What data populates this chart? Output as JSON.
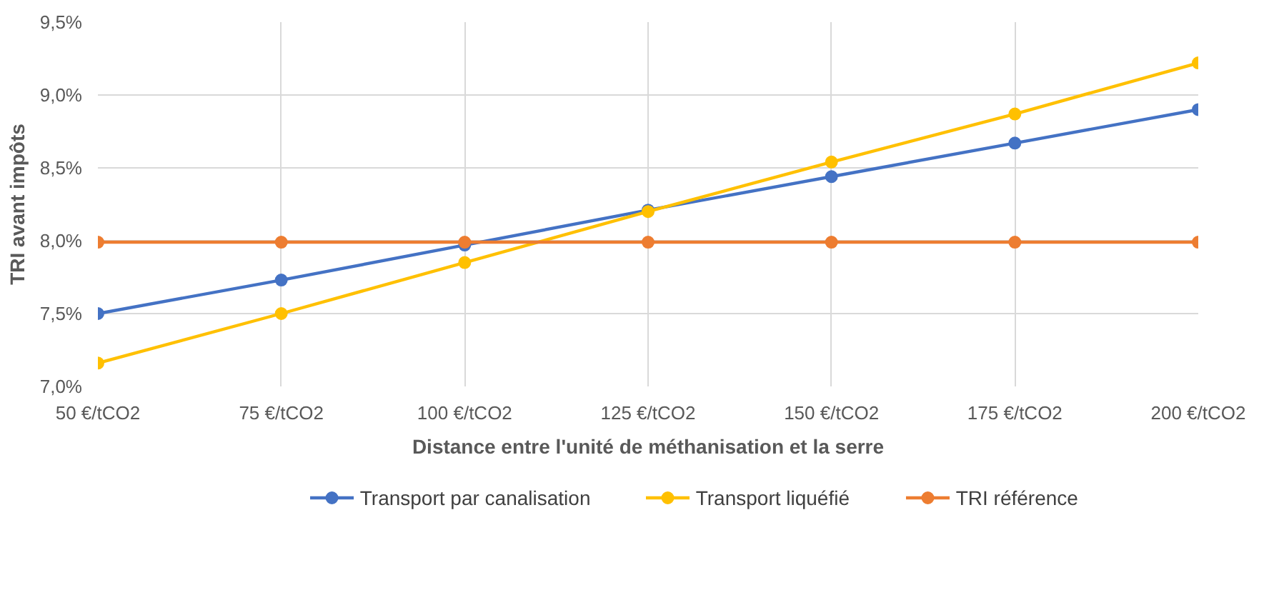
{
  "chart_data": {
    "type": "line",
    "xlabel": "Distance entre l'unité de méthanisation et la serre",
    "ylabel": "TRI avant impôts",
    "categories": [
      "50 €/tCO2",
      "75 €/tCO2",
      "100 €/tCO2",
      "125 €/tCO2",
      "150 €/tCO2",
      "175 €/tCO2",
      "200 €/tCO2"
    ],
    "ylim": [
      7.0,
      9.5
    ],
    "yticks": [
      {
        "value": 7.0,
        "label": "7,0%"
      },
      {
        "value": 7.5,
        "label": "7,5%"
      },
      {
        "value": 8.0,
        "label": "8,0%"
      },
      {
        "value": 8.5,
        "label": "8,5%"
      },
      {
        "value": 9.0,
        "label": "9,0%"
      },
      {
        "value": 9.5,
        "label": "9,5%"
      }
    ],
    "series": [
      {
        "name": "Transport par canalisation",
        "color": "#4472c4",
        "values": [
          7.5,
          7.73,
          7.97,
          8.21,
          8.44,
          8.67,
          8.9
        ]
      },
      {
        "name": "Transport liquéfié",
        "color": "#ffc000",
        "values": [
          7.16,
          7.5,
          7.85,
          8.2,
          8.54,
          8.87,
          9.22
        ]
      },
      {
        "name": "TRI référence",
        "color": "#ed7d31",
        "values": [
          7.99,
          7.99,
          7.99,
          7.99,
          7.99,
          7.99,
          7.99
        ]
      }
    ],
    "grid": true,
    "legend": "bottom",
    "marker": "circle",
    "line_style": "solid"
  }
}
